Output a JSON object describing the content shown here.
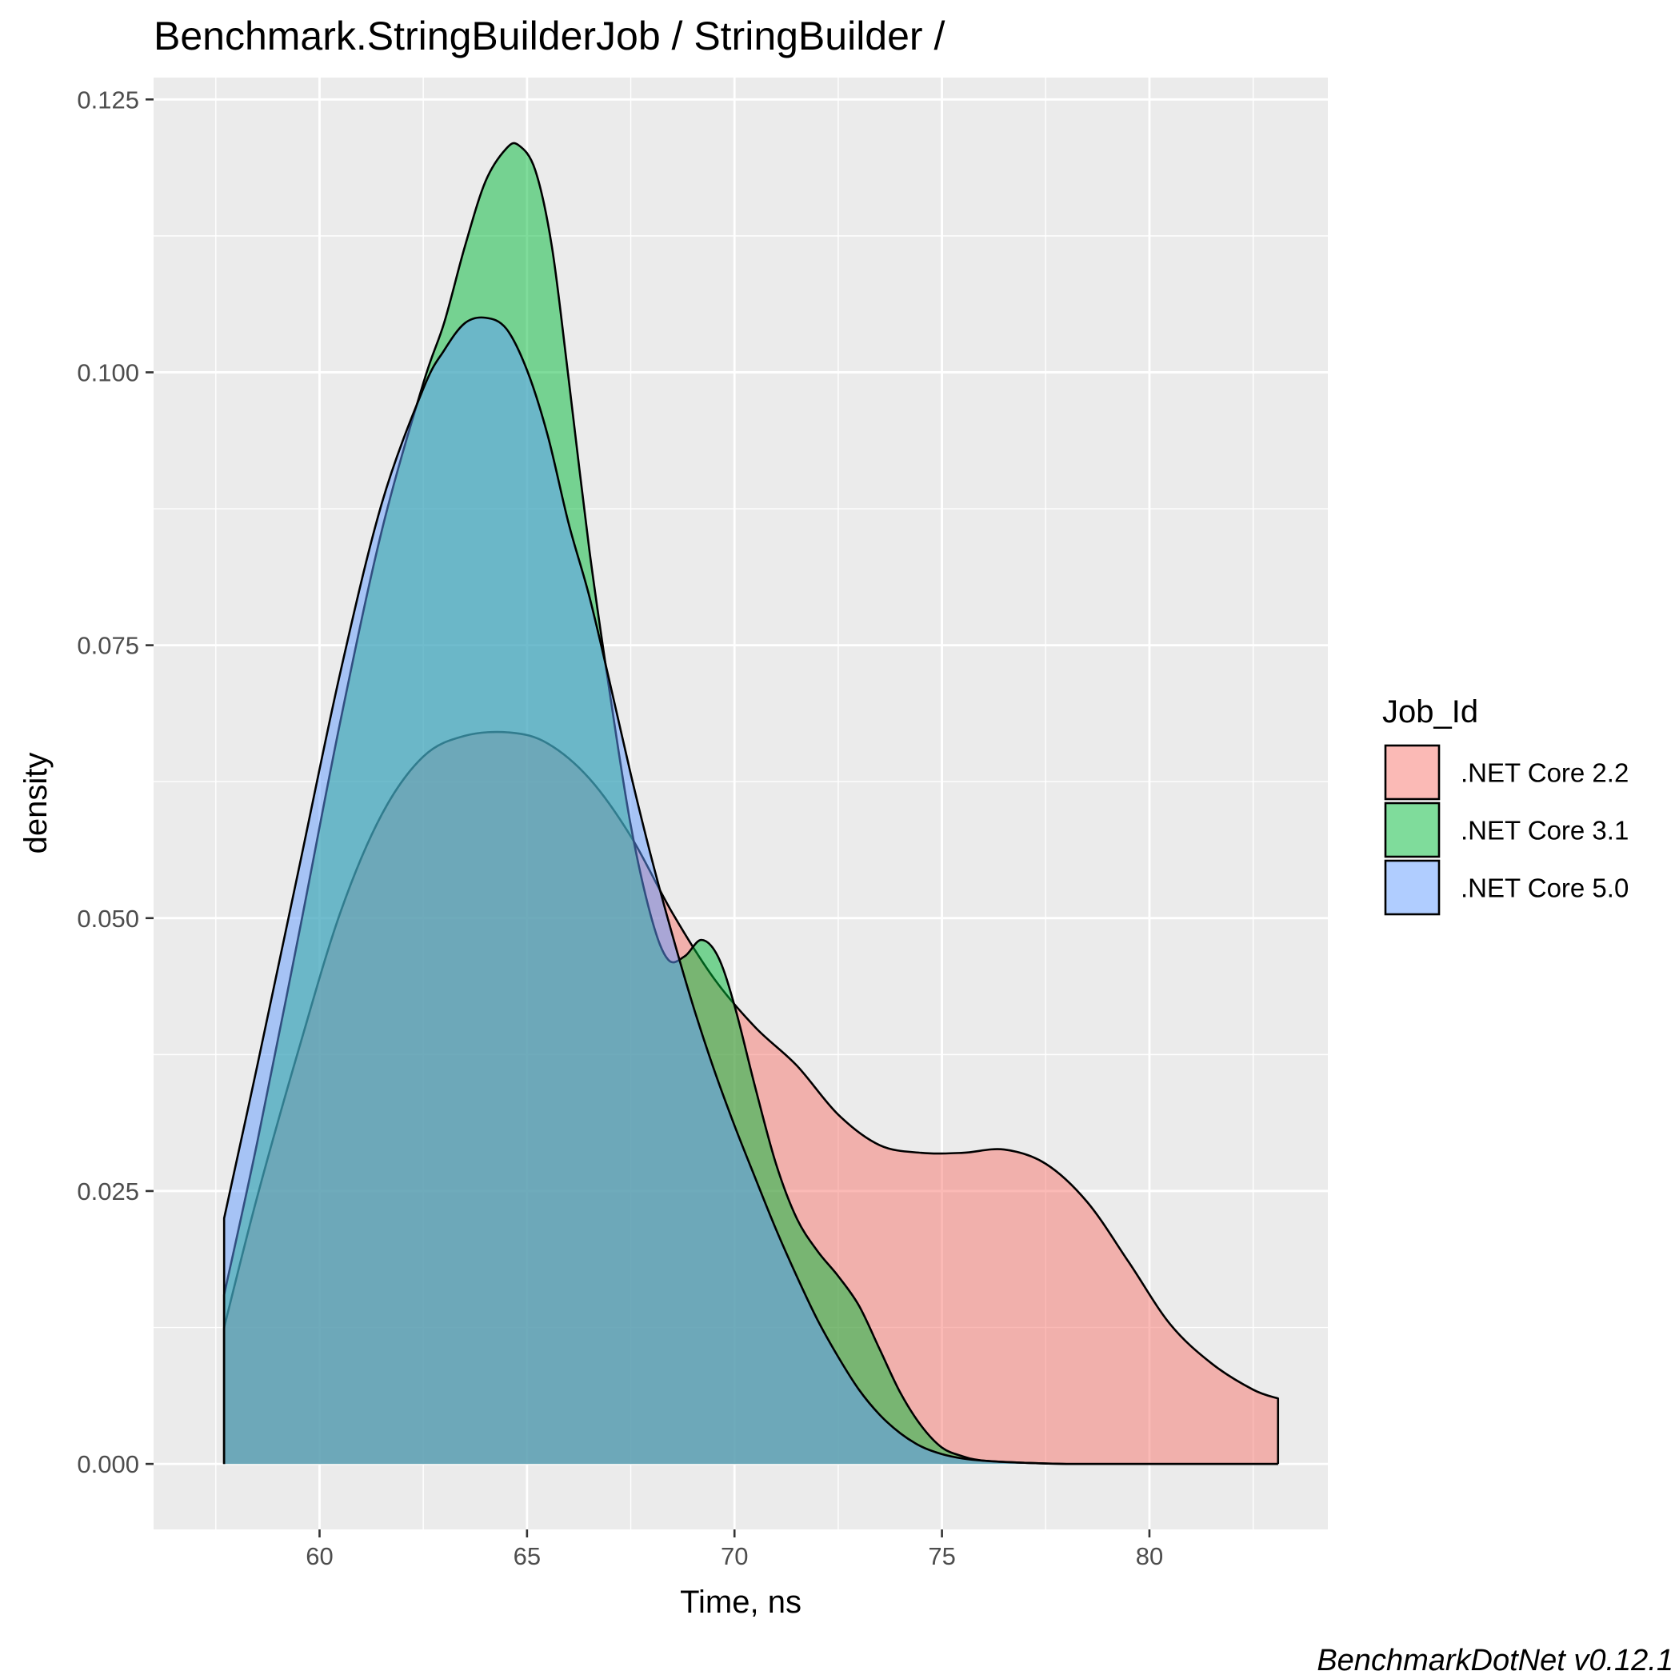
{
  "chart_data": {
    "type": "area",
    "subtype": "density",
    "title": "Benchmark.StringBuilderJob / StringBuilder /",
    "xlabel": "Time, ns",
    "ylabel": "density",
    "caption": "BenchmarkDotNet v0.12.1",
    "xlim": [
      56.0,
      84.3
    ],
    "ylim": [
      -0.006,
      0.127
    ],
    "x_ticks": [
      60,
      65,
      70,
      75,
      80
    ],
    "x_tick_labels": [
      "60",
      "65",
      "70",
      "75",
      "80"
    ],
    "y_ticks": [
      0.0,
      0.025,
      0.05,
      0.075,
      0.1,
      0.125
    ],
    "y_tick_labels": [
      "0.000",
      "0.025",
      "0.050",
      "0.075",
      "0.100",
      "0.125"
    ],
    "grid": true,
    "legend": {
      "title": "Job_Id",
      "position": "right",
      "entries": [
        ".NET Core 2.2",
        ".NET Core 3.1",
        ".NET Core 5.0"
      ]
    },
    "series": [
      {
        "name": ".NET Core 2.2",
        "color": "#F8766D",
        "x": [
          57.7,
          58.5,
          59.5,
          60.5,
          61.5,
          62.5,
          63.5,
          64.6,
          65.5,
          66.5,
          67.5,
          68.5,
          69.5,
          70.5,
          71.5,
          72.5,
          73.5,
          74.5,
          75.5,
          76.5,
          77.5,
          78.5,
          79.5,
          80.5,
          81.5,
          82.5,
          83.1
        ],
        "y": [
          0.0125,
          0.0245,
          0.038,
          0.0505,
          0.0595,
          0.0648,
          0.0667,
          0.067,
          0.066,
          0.0628,
          0.0575,
          0.0505,
          0.0445,
          0.04,
          0.0365,
          0.032,
          0.0292,
          0.0285,
          0.0285,
          0.0288,
          0.0275,
          0.024,
          0.0185,
          0.0128,
          0.0092,
          0.0068,
          0.006
        ]
      },
      {
        "name": ".NET Core 3.1",
        "color": "#00BA38",
        "x": [
          57.7,
          58.5,
          59.5,
          60.5,
          61.5,
          62.5,
          63.0,
          63.5,
          64.0,
          64.5,
          64.8,
          65.2,
          65.6,
          66.0,
          66.5,
          67.0,
          67.5,
          68.0,
          68.4,
          68.8,
          69.2,
          69.6,
          70.0,
          70.5,
          71.0,
          71.5,
          72.0,
          72.5,
          73.0,
          73.5,
          74.0,
          74.5,
          75.0,
          75.5,
          76.0,
          77.0,
          78.0,
          80.0,
          83.1
        ],
        "y": [
          0.0155,
          0.0295,
          0.0485,
          0.068,
          0.0855,
          0.099,
          0.1045,
          0.1115,
          0.1175,
          0.1205,
          0.1208,
          0.1185,
          0.1115,
          0.0995,
          0.0838,
          0.0705,
          0.0585,
          0.05,
          0.0462,
          0.0465,
          0.048,
          0.0465,
          0.042,
          0.0345,
          0.0275,
          0.0225,
          0.0195,
          0.0172,
          0.0145,
          0.0105,
          0.0065,
          0.0035,
          0.0015,
          0.0007,
          0.0003,
          0.0001,
          0.0,
          0.0,
          0.0
        ]
      },
      {
        "name": ".NET Core 5.0",
        "color": "#619CFF",
        "x": [
          57.7,
          58.5,
          59.5,
          60.5,
          61.5,
          62.5,
          63.0,
          63.5,
          64.0,
          64.5,
          65.0,
          65.5,
          66.0,
          66.5,
          67.0,
          67.5,
          68.0,
          68.5,
          69.0,
          69.5,
          70.0,
          70.5,
          71.0,
          71.5,
          72.0,
          72.5,
          73.0,
          73.5,
          74.0,
          74.5,
          75.0,
          75.5,
          76.0,
          77.0,
          78.0,
          80.0,
          83.1
        ],
        "y": [
          0.0225,
          0.0365,
          0.0545,
          0.0725,
          0.088,
          0.0985,
          0.102,
          0.1045,
          0.105,
          0.104,
          0.1002,
          0.0942,
          0.0862,
          0.0795,
          0.0715,
          0.0632,
          0.0555,
          0.0485,
          0.042,
          0.0362,
          0.031,
          0.0262,
          0.0215,
          0.0172,
          0.0132,
          0.0098,
          0.0068,
          0.0045,
          0.0028,
          0.0016,
          0.0009,
          0.0005,
          0.0003,
          0.0001,
          0.0,
          0.0,
          0.0
        ]
      }
    ]
  }
}
